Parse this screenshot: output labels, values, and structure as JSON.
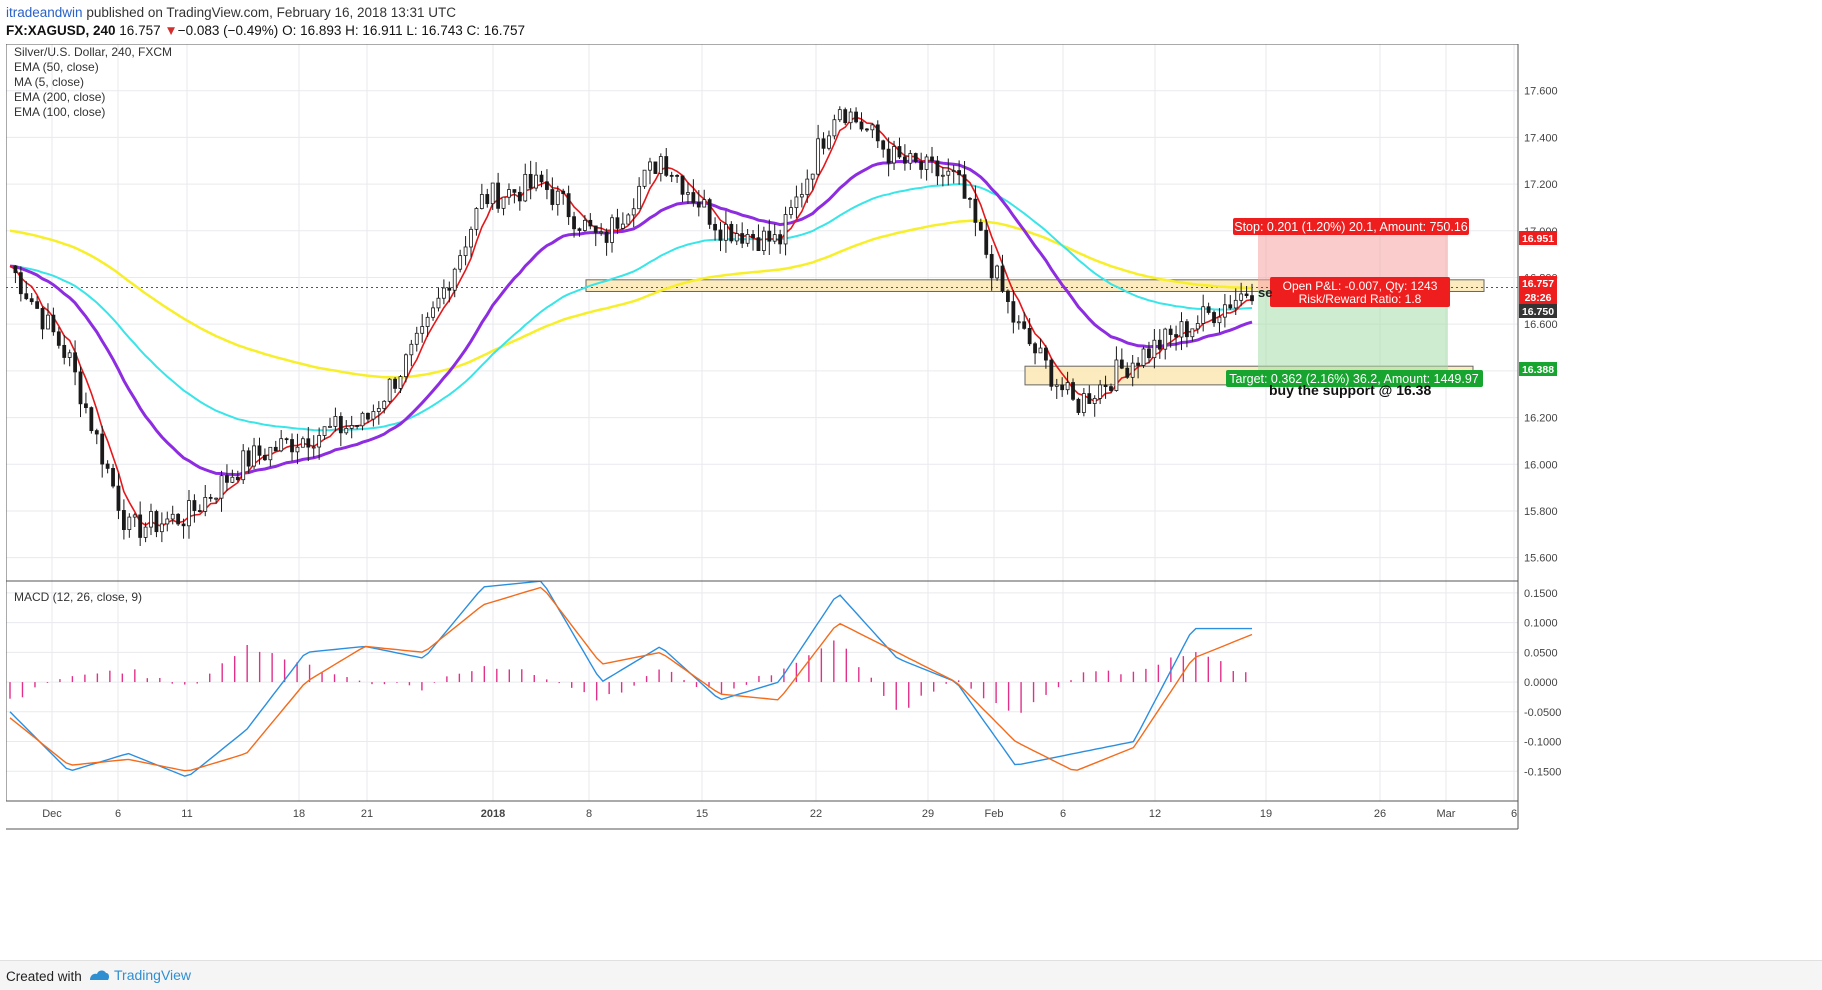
{
  "header": {
    "author": "itradeandwin",
    "published_text": " published on TradingView.com, February 16, 2018 13:31 UTC",
    "symbol": "FX:XAGUSD, 240",
    "last": "16.757",
    "change_arrow": "▼",
    "change": "−0.083 (−0.49%)",
    "ohlc": "O: 16.893 H: 16.911 L: 16.743 C: 16.757"
  },
  "legend": {
    "title": "Silver/U.S. Dollar, 240, FXCM",
    "indicators": [
      "EMA (50, close)",
      "MA (5, close)",
      "EMA (200, close)",
      "EMA (100, close)"
    ],
    "macd": "MACD (12, 26, close, 9)"
  },
  "colors": {
    "ema50": "#8d2ce0",
    "ma5": "#e5171b",
    "ema200": "#f7ef2a",
    "ema100": "#38e5e8",
    "macd_line": "#2b8fe0",
    "signal_line": "#f46b1b",
    "histogram": "#e0308a",
    "stop": "#ef1e1e",
    "target": "#17a52f",
    "candle": "#1a1a1a"
  },
  "annotations": {
    "stop": "Stop: 0.201 (1.20%) 20.1, Amount: 750.16",
    "open_pl": "Open P&L: -0.007, Qty: 1243",
    "rr": "Risk/Reward Ratio: 1.8",
    "target": "Target: 0.362 (2.16%) 36.2, Amount: 1449.97",
    "sell_note": "se",
    "buy_note": "buy the support @ 16.38"
  },
  "price_tags": {
    "stop": "16.951",
    "last": "16.757",
    "countdown": "28:26",
    "entry": "16.750",
    "target": "16.388"
  },
  "footer": {
    "created": "Created with",
    "brand": "TradingView"
  },
  "chart_data": [
    {
      "type": "candlestick",
      "title": "Silver/U.S. Dollar, 240, FXCM",
      "ylim": [
        15.5,
        17.8
      ],
      "y_ticks": [
        15.6,
        15.8,
        16.0,
        16.2,
        16.4,
        16.6,
        16.8,
        17.0,
        17.2,
        17.4,
        17.6
      ],
      "x_ticks": [
        "Dec",
        "6",
        "11",
        "18",
        "21",
        "2018",
        "8",
        "15",
        "22",
        "29",
        "Feb",
        "6",
        "12",
        "19",
        "26",
        "Mar",
        "6"
      ],
      "x": [
        "Nov 28",
        "Dec 5",
        "Dec 8",
        "Dec 12",
        "Dec 15",
        "Dec 19",
        "Dec 22",
        "Dec 27",
        "Jan 2",
        "Jan 5",
        "Jan 10",
        "Jan 15",
        "Jan 19",
        "Jan 24",
        "Jan 26",
        "Jan 30",
        "Feb 2",
        "Feb 5",
        "Feb 8",
        "Feb 12",
        "Feb 14",
        "Feb 16"
      ],
      "close": [
        16.85,
        16.45,
        15.72,
        15.78,
        16.02,
        16.12,
        16.18,
        16.55,
        17.14,
        17.2,
        16.95,
        17.32,
        17.02,
        16.95,
        17.55,
        17.3,
        17.22,
        16.6,
        16.25,
        16.45,
        16.6,
        16.757
      ],
      "supply_zone": [
        16.74,
        16.79
      ],
      "demand_zone": [
        16.34,
        16.42
      ],
      "stop_level": 16.951,
      "entry_level": 16.75,
      "target_level": 16.388,
      "last_price": 16.757
    },
    {
      "type": "line",
      "title": "MACD (12, 26, close, 9)",
      "ylim": [
        -0.2,
        0.17
      ],
      "y_ticks": [
        -0.15,
        -0.1,
        -0.05,
        0.0,
        0.05,
        0.1,
        0.15
      ],
      "series": [
        {
          "name": "MACD",
          "values": [
            -0.05,
            -0.15,
            -0.12,
            -0.16,
            -0.08,
            0.05,
            0.06,
            0.04,
            0.16,
            0.17,
            0.0,
            0.06,
            -0.03,
            0.0,
            0.15,
            0.04,
            0.0,
            -0.14,
            -0.12,
            -0.1,
            0.09,
            0.09
          ]
        },
        {
          "name": "Signal",
          "values": [
            -0.06,
            -0.14,
            -0.13,
            -0.15,
            -0.12,
            0.0,
            0.06,
            0.05,
            0.13,
            0.16,
            0.03,
            0.05,
            -0.02,
            -0.03,
            0.1,
            0.05,
            0.0,
            -0.1,
            -0.15,
            -0.11,
            0.04,
            0.08
          ]
        },
        {
          "name": "Histogram",
          "values": [
            -0.03,
            0.01,
            0.02,
            -0.01,
            0.06,
            0.03,
            0.0,
            -0.01,
            0.03,
            0.01,
            -0.03,
            0.02,
            -0.02,
            0.02,
            0.07,
            -0.05,
            0.01,
            -0.06,
            0.01,
            0.02,
            0.05,
            0.01
          ]
        }
      ]
    }
  ]
}
